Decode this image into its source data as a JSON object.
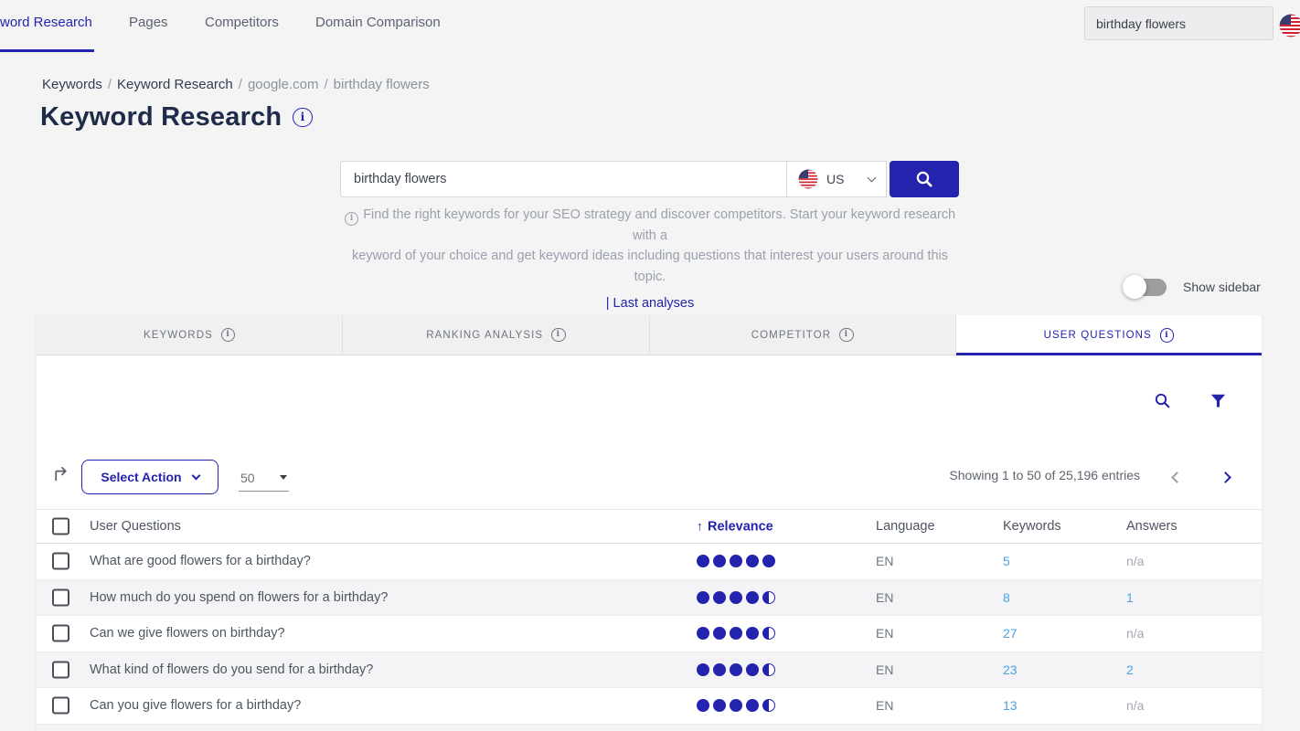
{
  "colors": {
    "accent": "#2323ae",
    "link_blue": "#4aa3df",
    "toggle_off": "#9d9d9d",
    "page_bg": "#f4f4f5"
  },
  "icons": {
    "title_info": "info-circle",
    "tab_info": "info-circle",
    "intro_info": "info-circle",
    "search_button": "magnifier",
    "panel_search": "magnifier",
    "panel_filter": "funnel",
    "export": "arrow-turn-up-right",
    "sort": "arrow-up",
    "country_flag": "us-flag",
    "pagination": "chevron-left / chevron-right"
  },
  "topnav": {
    "items": [
      {
        "label": "word Research",
        "active": true
      },
      {
        "label": "Pages",
        "active": false
      },
      {
        "label": "Competitors",
        "active": false
      },
      {
        "label": "Domain Comparison",
        "active": false
      }
    ],
    "search_value": "birthday flowers"
  },
  "breadcrumb": {
    "separator": "/",
    "items": [
      {
        "label": "Keywords",
        "muted": false
      },
      {
        "label": "Keyword Research",
        "muted": false
      },
      {
        "label": "google.com",
        "muted": true
      },
      {
        "label": "birthday flowers",
        "muted": true
      }
    ]
  },
  "page": {
    "title": "Keyword Research"
  },
  "search": {
    "value": "birthday flowers",
    "country": "US"
  },
  "intro": {
    "line1": "Find the right keywords for your SEO strategy and discover competitors. Start your keyword research with a",
    "line2": "keyword of your choice and get keyword ideas including questions that interest your users around this topic.",
    "last_analyses": "| Last analyses"
  },
  "sidebar_toggle": {
    "label": "Show sidebar",
    "state": "off"
  },
  "tabs": [
    {
      "label": "KEYWORDS",
      "active": false
    },
    {
      "label": "RANKING ANALYSIS",
      "active": false
    },
    {
      "label": "COMPETITOR",
      "active": false
    },
    {
      "label": "USER QUESTIONS",
      "active": true
    }
  ],
  "toolbar": {
    "select_action": "Select Action",
    "page_size": "50",
    "showing": "Showing 1 to 50 of 25,196 entries"
  },
  "table": {
    "headers": {
      "question": "User Questions",
      "relevance": "Relevance",
      "language": "Language",
      "keywords": "Keywords",
      "answers": "Answers"
    },
    "rows": [
      {
        "question": "What are good flowers for a birthday?",
        "relevance": 5,
        "language": "EN",
        "keywords": "5",
        "answers": "n/a"
      },
      {
        "question": "How much do you spend on flowers for a birthday?",
        "relevance": 4.5,
        "language": "EN",
        "keywords": "8",
        "answers": "1"
      },
      {
        "question": "Can we give flowers on birthday?",
        "relevance": 4.5,
        "language": "EN",
        "keywords": "27",
        "answers": "n/a"
      },
      {
        "question": "What kind of flowers do you send for a birthday?",
        "relevance": 4.5,
        "language": "EN",
        "keywords": "23",
        "answers": "2"
      },
      {
        "question": "Can you give flowers for a birthday?",
        "relevance": 4.5,
        "language": "EN",
        "keywords": "13",
        "answers": "n/a"
      }
    ]
  }
}
